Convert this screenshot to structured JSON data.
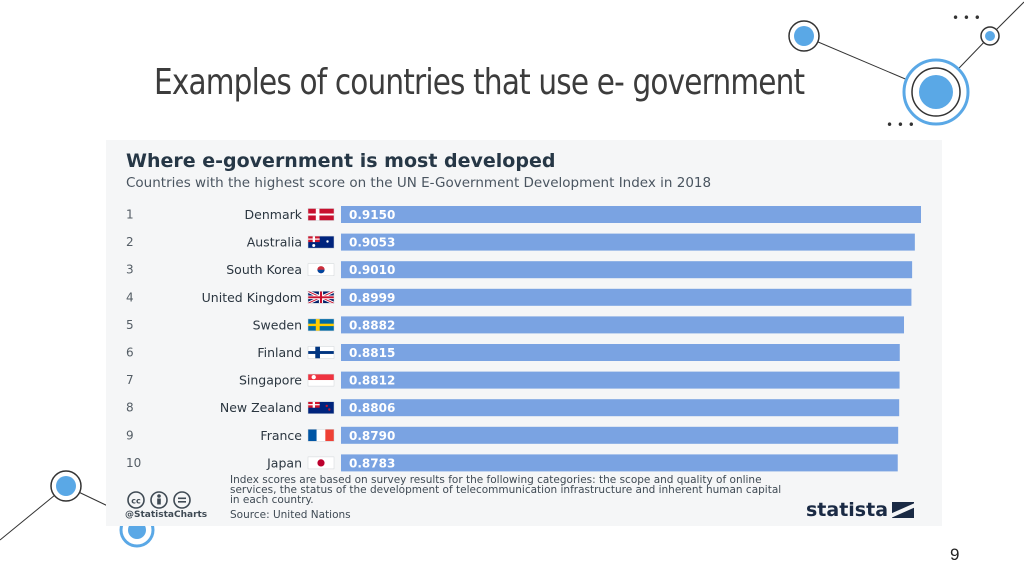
{
  "slide": {
    "title": "Examples of countries that use e- government",
    "page_number": "9"
  },
  "chart_data": {
    "type": "bar",
    "orientation": "horizontal",
    "title": "Where e-government is most developed",
    "subtitle": "Countries with the highest score on the UN E-Government Development Index in 2018",
    "ranks": [
      "1",
      "2",
      "3",
      "4",
      "5",
      "6",
      "7",
      "8",
      "9",
      "10"
    ],
    "categories": [
      "Denmark",
      "Australia",
      "South Korea",
      "United Kingdom",
      "Sweden",
      "Finland",
      "Singapore",
      "New Zealand",
      "France",
      "Japan"
    ],
    "flags": [
      "denmark-flag-icon",
      "australia-flag-icon",
      "south-korea-flag-icon",
      "united-kingdom-flag-icon",
      "sweden-flag-icon",
      "finland-flag-icon",
      "singapore-flag-icon",
      "new-zealand-flag-icon",
      "france-flag-icon",
      "japan-flag-icon"
    ],
    "values": [
      0.915,
      0.9053,
      0.901,
      0.8999,
      0.8882,
      0.8815,
      0.8812,
      0.8806,
      0.879,
      0.8783
    ],
    "value_labels": [
      "0.9150",
      "0.9053",
      "0.9010",
      "0.8999",
      "0.8882",
      "0.8815",
      "0.8812",
      "0.8806",
      "0.8790",
      "0.8783"
    ],
    "xlim": [
      0,
      0.915
    ],
    "bar_color": "#7aa3e2",
    "note": "Index scores are based on survey results for the following categories: the scope and quality of online services, the status of the development of telecommunication infrastructure and inherent human capital in each country.",
    "source": "Source: United Nations",
    "handle": "@StatistaCharts",
    "brand": "statista"
  },
  "colors": {
    "accent": "#5aa8e6",
    "title_text": "#3c3c3c"
  }
}
